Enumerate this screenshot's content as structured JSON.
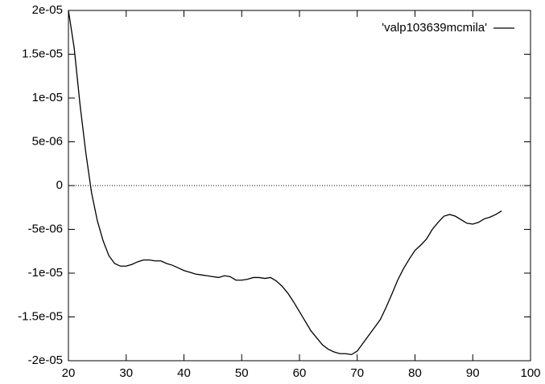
{
  "chart_data": {
    "type": "line",
    "xlim": [
      20,
      100
    ],
    "ylim": [
      -2e-05,
      2e-05
    ],
    "xticks": [
      20,
      30,
      40,
      50,
      60,
      70,
      80,
      90,
      100
    ],
    "yticks": [
      {
        "value": -2e-05,
        "label": "-2e-05"
      },
      {
        "value": -1.5e-05,
        "label": "-1.5e-05"
      },
      {
        "value": -1e-05,
        "label": "-1e-05"
      },
      {
        "value": -5e-06,
        "label": "-5e-06"
      },
      0,
      {
        "value": 5e-06,
        "label": "5e-06"
      },
      {
        "value": 1e-05,
        "label": "1e-05"
      },
      {
        "value": 1.5e-05,
        "label": "1.5e-05"
      },
      {
        "value": 2e-05,
        "label": "2e-05"
      }
    ],
    "zeroaxis": true,
    "legend": "top-right",
    "x": [
      20,
      21,
      22,
      23,
      24,
      25,
      26,
      27,
      28,
      29,
      30,
      31,
      32,
      33,
      34,
      35,
      36,
      37,
      38,
      39,
      40,
      41,
      42,
      43,
      44,
      45,
      46,
      47,
      48,
      49,
      50,
      51,
      52,
      53,
      54,
      55,
      56,
      57,
      58,
      59,
      60,
      61,
      62,
      63,
      64,
      65,
      66,
      67,
      68,
      69,
      70,
      71,
      72,
      73,
      74,
      75,
      76,
      77,
      78,
      79,
      80,
      81,
      82,
      83,
      84,
      85,
      86,
      87,
      88,
      89,
      90,
      91,
      92,
      93,
      94,
      95
    ],
    "series": [
      {
        "name": "'valp103639mcmila'",
        "color": "#000000",
        "values": [
          2e-05,
          1.57e-05,
          9.3e-06,
          3.8e-06,
          -8e-07,
          -4e-06,
          -6.3e-06,
          -8e-06,
          -8.9e-06,
          -9.2e-06,
          -9.2e-06,
          -9e-06,
          -8.7e-06,
          -8.5e-06,
          -8.5e-06,
          -8.6e-06,
          -8.6e-06,
          -8.9e-06,
          -9.1e-06,
          -9.4e-06,
          -9.7e-06,
          -9.9e-06,
          -1.01e-05,
          -1.02e-05,
          -1.03e-05,
          -1.04e-05,
          -1.05e-05,
          -1.03e-05,
          -1.04e-05,
          -1.08e-05,
          -1.08e-05,
          -1.07e-05,
          -1.05e-05,
          -1.05e-05,
          -1.06e-05,
          -1.05e-05,
          -1.09e-05,
          -1.15e-05,
          -1.23e-05,
          -1.33e-05,
          -1.44e-05,
          -1.55e-05,
          -1.66e-05,
          -1.74e-05,
          -1.82e-05,
          -1.87e-05,
          -1.9e-05,
          -1.92e-05,
          -1.92e-05,
          -1.93e-05,
          -1.89e-05,
          -1.8e-05,
          -1.71e-05,
          -1.62e-05,
          -1.53e-05,
          -1.39e-05,
          -1.24e-05,
          -1.08e-05,
          -9.5e-06,
          -8.4e-06,
          -7.4e-06,
          -6.8e-06,
          -6.1e-06,
          -5e-06,
          -4.2e-06,
          -3.5e-06,
          -3.3e-06,
          -3.5e-06,
          -3.9e-06,
          -4.3e-06,
          -4.4e-06,
          -4.2e-06,
          -3.8e-06,
          -3.6e-06,
          -3.3e-06,
          -2.9e-06
        ]
      }
    ]
  }
}
